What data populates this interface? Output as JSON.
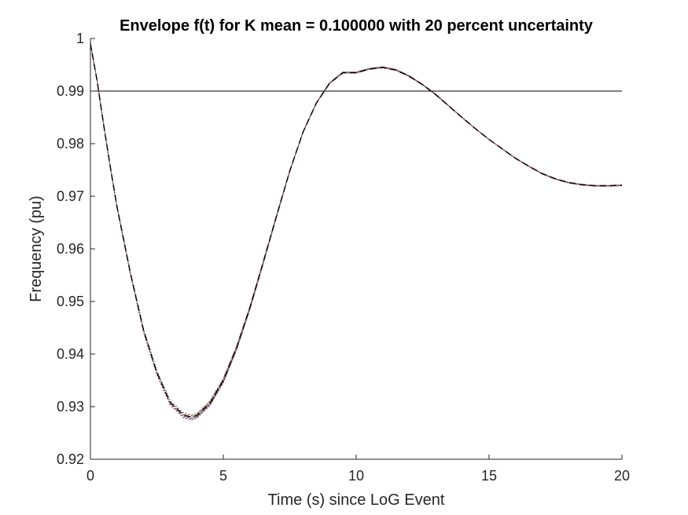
{
  "chart_data": {
    "type": "line",
    "title": "Envelope f(t) for K mean = 0.100000 with 20 percent uncertainty",
    "xlabel": "Time (s) since LoG Event",
    "ylabel": "Frequency (pu)",
    "xlim": [
      0,
      20
    ],
    "ylim": [
      0.92,
      1.0
    ],
    "xticks": [
      0,
      5,
      10,
      15,
      20
    ],
    "xtick_labels": [
      "0",
      "5",
      "10",
      "15",
      "20"
    ],
    "yticks": [
      0.92,
      0.93,
      0.94,
      0.95,
      0.96,
      0.97,
      0.98,
      0.99,
      1.0
    ],
    "ytick_labels": [
      "0.92",
      "0.93",
      "0.94",
      "0.95",
      "0.96",
      "0.97",
      "0.98",
      "0.99",
      "1"
    ],
    "grid": false,
    "reference_line": {
      "y": 0.99,
      "color": "#000000"
    },
    "mean_series": {
      "style": "dashed",
      "color": "#000000",
      "x": [
        0,
        0.25,
        0.5,
        0.75,
        1,
        1.5,
        2,
        2.5,
        3,
        3.5,
        3.8,
        4,
        4.5,
        5,
        5.5,
        6,
        6.5,
        7,
        7.5,
        8,
        8.5,
        9,
        9.5,
        10,
        10.5,
        11,
        11.5,
        12,
        12.5,
        13,
        13.5,
        14,
        14.5,
        15,
        15.5,
        16,
        16.5,
        17,
        17.5,
        18,
        18.5,
        19,
        19.5,
        20
      ],
      "y": [
        0.999,
        0.992,
        0.9835,
        0.9755,
        0.968,
        0.9555,
        0.9445,
        0.9365,
        0.9308,
        0.9284,
        0.928,
        0.9283,
        0.9307,
        0.935,
        0.9412,
        0.9488,
        0.9574,
        0.9662,
        0.9748,
        0.9822,
        0.9877,
        0.9915,
        0.9935,
        0.9935,
        0.9942,
        0.9945,
        0.994,
        0.9928,
        0.9912,
        0.9893,
        0.9871,
        0.9849,
        0.9828,
        0.9808,
        0.979,
        0.9772,
        0.9757,
        0.9743,
        0.9733,
        0.9726,
        0.9722,
        0.972,
        0.972,
        0.9721
      ]
    },
    "uncertainty_series": {
      "style": "dotted",
      "count": 10,
      "colors": [
        "#0072BD",
        "#D95319",
        "#EDB120",
        "#7E2F8E",
        "#77AC30",
        "#4DBEEE",
        "#A2142F",
        "#0072BD",
        "#D95319",
        "#7E2F8E"
      ],
      "relative_deviation": [
        -0.16,
        -0.12,
        -0.08,
        -0.04,
        0.0,
        0.04,
        0.08,
        0.12,
        0.16,
        0.2
      ]
    }
  }
}
